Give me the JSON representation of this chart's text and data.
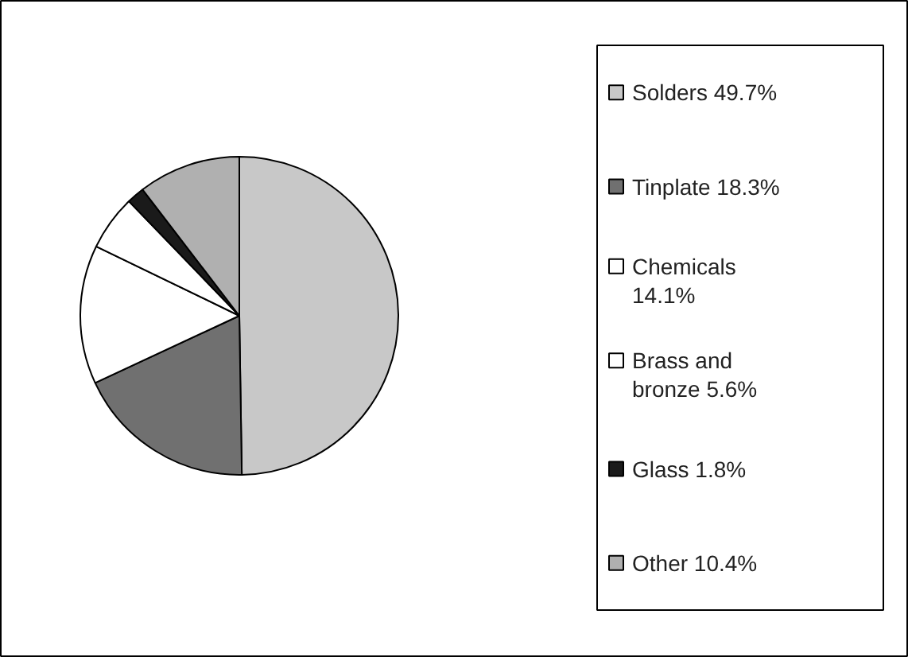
{
  "chart_data": {
    "type": "pie",
    "categories": [
      "Solders",
      "Tinplate",
      "Chemicals",
      "Brass and bronze",
      "Glass",
      "Other"
    ],
    "values": [
      49.7,
      18.3,
      14.1,
      5.6,
      1.8,
      10.4
    ],
    "value_labels": [
      "49.7%",
      "18.3%",
      "14.1%",
      "5.6%",
      "1.8%",
      "10.4%"
    ],
    "colors": [
      "#c8c8c8",
      "#707070",
      "#ffffff",
      "#ffffff",
      "#1a1a1a",
      "#b0b0b0"
    ],
    "legend": "right"
  }
}
